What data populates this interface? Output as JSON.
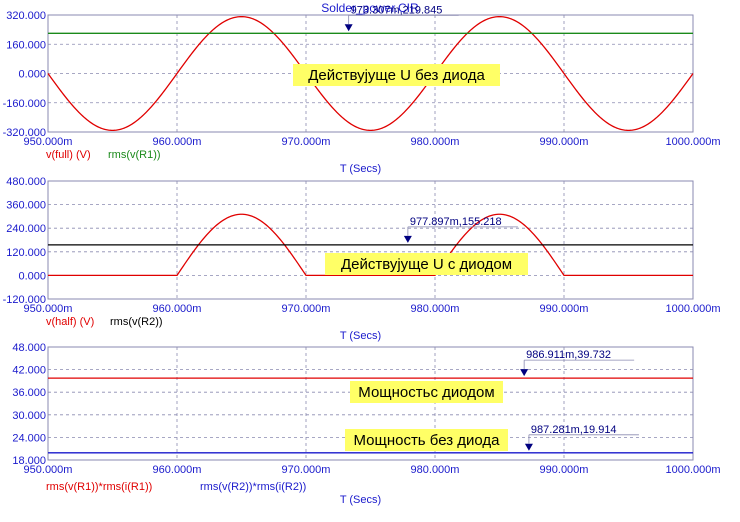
{
  "window_title": "Solder_power.CIR",
  "colors": {
    "axis_text": "#1a1acc",
    "red": "#e00000",
    "green": "#1a8a1a",
    "black": "#000000",
    "blue": "#1a1acc",
    "note_bg": "#ffff66",
    "grid": "#8a8ab0"
  },
  "chart_data": [
    {
      "type": "line",
      "xlabel": "T (Secs)",
      "xlim": [
        950,
        1000
      ],
      "xticks": [
        "950.000m",
        "960.000m",
        "970.000m",
        "980.000m",
        "990.000m",
        "1000.000m"
      ],
      "ylim": [
        -320,
        320
      ],
      "yticks": [
        "320.000",
        "160.000",
        "0.000",
        "-160.000",
        "-320.000"
      ],
      "grid": true,
      "series": [
        {
          "name": "v(full) (V)",
          "color": "#e00000",
          "kind": "sine",
          "amplitude": 311,
          "period": 20,
          "peak_at": 965
        },
        {
          "name": "rms(v(R1))",
          "color": "#1a8a1a",
          "kind": "const",
          "value": 219.845
        }
      ],
      "cursor": {
        "label": "973.307m,219.845",
        "x": 973.307,
        "y": 219.845
      },
      "annotation": "Действујуще U без диода"
    },
    {
      "type": "line",
      "xlabel": "T (Secs)",
      "xlim": [
        950,
        1000
      ],
      "xticks": [
        "950.000m",
        "960.000m",
        "970.000m",
        "980.000m",
        "990.000m",
        "1000.000m"
      ],
      "ylim": [
        -120,
        480
      ],
      "yticks": [
        "480.000",
        "360.000",
        "240.000",
        "120.000",
        "0.000",
        "-120.000"
      ],
      "grid": true,
      "series": [
        {
          "name": "v(half) (V)",
          "color": "#e00000",
          "kind": "halfwave",
          "amplitude": 311,
          "period": 20,
          "peak_at": 965
        },
        {
          "name": "rms(v(R2))",
          "color": "#000000",
          "kind": "const",
          "value": 155.218
        }
      ],
      "cursor": {
        "label": "977.897m,155.218",
        "x": 977.897,
        "y": 155.218
      },
      "annotation": "Действујуще U с диодом"
    },
    {
      "type": "line",
      "xlabel": "T (Secs)",
      "xlim": [
        950,
        1000
      ],
      "xticks": [
        "950.000m",
        "960.000m",
        "970.000m",
        "980.000m",
        "990.000m",
        "1000.000m"
      ],
      "ylim": [
        18,
        48
      ],
      "yticks": [
        "48.000",
        "42.000",
        "36.000",
        "30.000",
        "24.000",
        "18.000"
      ],
      "grid": true,
      "series": [
        {
          "name": "rms(v(R1))*rms(i(R1))",
          "color": "#e00000",
          "kind": "const",
          "value": 39.732
        },
        {
          "name": "rms(v(R2))*rms(i(R2))",
          "color": "#1a1acc",
          "kind": "const",
          "value": 19.914
        }
      ],
      "cursors": [
        {
          "label": "986.911m,39.732",
          "x": 986.911,
          "y": 39.732
        },
        {
          "label": "987.281m,19.914",
          "x": 987.281,
          "y": 19.914
        }
      ],
      "annotations": [
        "Мощностьс диодом",
        "Мощность без диода"
      ]
    }
  ]
}
